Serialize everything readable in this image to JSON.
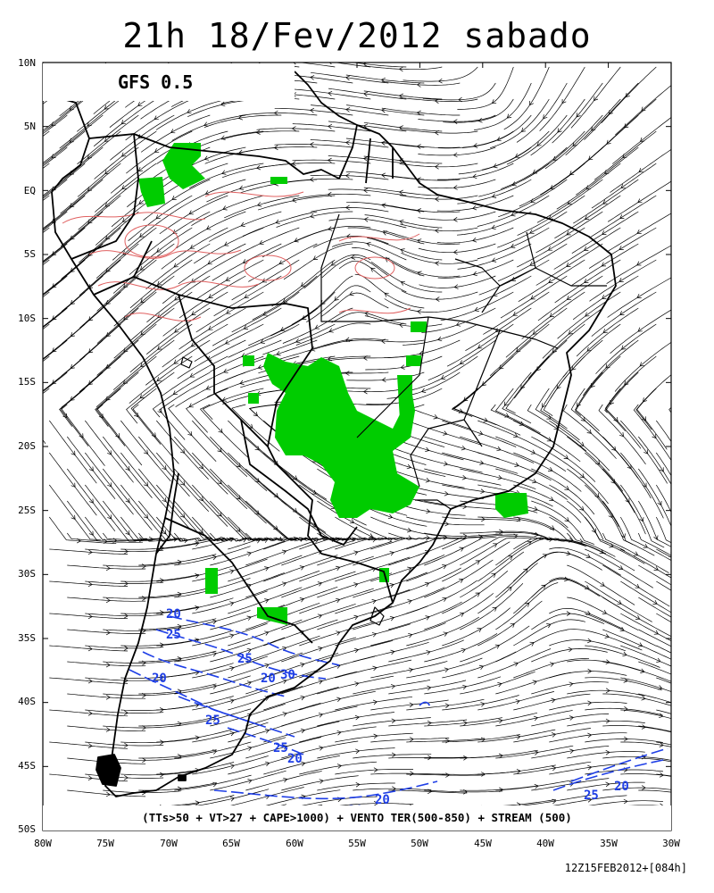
{
  "title": "21h 18/Fev/2012 sabado",
  "model_label": "GFS 0.5",
  "legend": "(TTs>50 + VT>27 + CAPE>1000) + VENTO TER(500-850) + STREAM (500)",
  "run_stamp": "12Z15FEB2012+[084h]",
  "lat_labels": [
    "10N",
    "5N",
    "EQ",
    "5S",
    "10S",
    "15S",
    "20S",
    "25S",
    "30S",
    "35S",
    "40S",
    "45S",
    "50S"
  ],
  "lon_labels": [
    "80W",
    "75W",
    "70W",
    "65W",
    "60W",
    "55W",
    "50W",
    "45W",
    "40W",
    "35W",
    "30W"
  ],
  "contour_labels": [
    "20",
    "25",
    "25",
    "20",
    "20",
    "30",
    "25",
    "25",
    "20",
    "20",
    "20",
    "25",
    "20"
  ],
  "colors": {
    "instability_fill": "#00cc00",
    "upper_wind_contour": "#1f3fe6",
    "red_contour": "#e06060",
    "streamline": "#000000",
    "coastline": "#000000"
  }
}
